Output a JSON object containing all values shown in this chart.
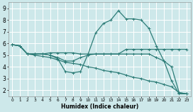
{
  "xlabel": "Humidex (Indice chaleur)",
  "xlim": [
    -0.5,
    23.5
  ],
  "ylim": [
    1.5,
    9.5
  ],
  "yticks": [
    2,
    3,
    4,
    5,
    6,
    7,
    8,
    9
  ],
  "xticks": [
    0,
    1,
    2,
    3,
    4,
    5,
    6,
    7,
    8,
    9,
    10,
    11,
    12,
    13,
    14,
    15,
    16,
    17,
    18,
    19,
    20,
    21,
    22,
    23
  ],
  "bg_color": "#cde8ea",
  "grid_color": "#ffffff",
  "line_color": "#2e7d78",
  "curves": [
    {
      "x": [
        0,
        1,
        2,
        3,
        4,
        5,
        6,
        7,
        8,
        9,
        10,
        11,
        12,
        13,
        14,
        15,
        16,
        17,
        18,
        19,
        20,
        21,
        22,
        23
      ],
      "y": [
        5.9,
        5.8,
        5.1,
        5.1,
        5.1,
        5.2,
        5.2,
        5.2,
        5.2,
        5.1,
        5.1,
        5.1,
        5.1,
        5.1,
        5.1,
        5.5,
        5.5,
        5.5,
        5.5,
        5.5,
        5.5,
        5.5,
        5.5,
        5.5
      ]
    },
    {
      "x": [
        0,
        1,
        2,
        3,
        4,
        5,
        6,
        7,
        8,
        9,
        10,
        11,
        12,
        13,
        14,
        15,
        16,
        17,
        18,
        19,
        20,
        21,
        22,
        23
      ],
      "y": [
        5.9,
        5.8,
        5.1,
        5.1,
        5.1,
        5.0,
        4.7,
        3.6,
        3.5,
        3.6,
        5.1,
        6.9,
        7.7,
        8.0,
        8.8,
        8.1,
        8.1,
        8.0,
        7.3,
        5.8,
        4.5,
        2.8,
        1.7,
        1.7
      ]
    },
    {
      "x": [
        0,
        1,
        2,
        3,
        4,
        5,
        6,
        7,
        8,
        9,
        10,
        11,
        12,
        13,
        14,
        15,
        16,
        17,
        18,
        19,
        20,
        21,
        22,
        23
      ],
      "y": [
        5.9,
        5.8,
        5.1,
        5.0,
        4.9,
        4.8,
        4.6,
        4.4,
        4.3,
        4.2,
        4.0,
        3.9,
        3.7,
        3.6,
        3.5,
        3.3,
        3.1,
        3.0,
        2.8,
        2.7,
        2.5,
        2.3,
        1.8,
        1.7
      ]
    },
    {
      "x": [
        0,
        1,
        2,
        3,
        4,
        5,
        6,
        7,
        8,
        9,
        10,
        11,
        12,
        13,
        14,
        15,
        16,
        17,
        18,
        19,
        20,
        21,
        22,
        23
      ],
      "y": [
        5.9,
        5.8,
        5.1,
        5.1,
        5.1,
        5.0,
        4.8,
        4.5,
        4.5,
        4.8,
        5.0,
        5.1,
        5.1,
        5.1,
        5.1,
        5.1,
        5.1,
        5.1,
        5.1,
        4.8,
        4.5,
        4.0,
        1.8,
        1.7
      ]
    }
  ],
  "marker": "+",
  "markersize": 3,
  "linewidth": 0.9
}
